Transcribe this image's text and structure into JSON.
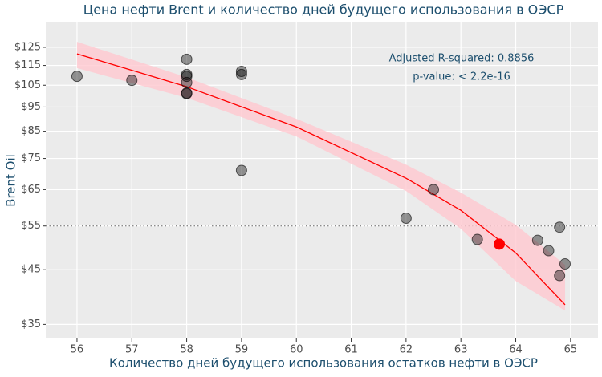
{
  "chart_data": {
    "type": "scatter",
    "title": "Цена нефти Brent и количество дней будущего использования в ОЭСР",
    "x_label": "Количество дней будущего использования остатков нефти в ОЭСР",
    "y_label": "Brent Oil",
    "annotations": [
      "Adjusted R-squared: 0.8856",
      "p-value: < 2.2e-16"
    ],
    "xlim": [
      55.43,
      65.5
    ],
    "ylim": [
      32.8,
      140.1
    ],
    "log_y": true,
    "grid": true,
    "xticks": [
      56,
      57,
      58,
      59,
      60,
      61,
      62,
      63,
      64,
      65
    ],
    "yticks": [
      {
        "value": 35,
        "label": "$35"
      },
      {
        "value": 45,
        "label": "$45"
      },
      {
        "value": 55,
        "label": "$55"
      },
      {
        "value": 65,
        "label": "$65"
      },
      {
        "value": 75,
        "label": "$75"
      },
      {
        "value": 85,
        "label": "$85"
      },
      {
        "value": 95,
        "label": "$95"
      },
      {
        "value": 105,
        "label": "$105"
      },
      {
        "value": 115,
        "label": "$115"
      },
      {
        "value": 125,
        "label": "$125"
      }
    ],
    "hline": 55,
    "series": [
      {
        "type": "scatter",
        "color": "#000000",
        "alpha": 0.4,
        "x": [
          56,
          57,
          58,
          58,
          58,
          58,
          58,
          58,
          59,
          59,
          59,
          62,
          62.5,
          63.3,
          64.4,
          64.6,
          64.8,
          64.8,
          64.9
        ],
        "values": [
          109.4,
          107.4,
          118.3,
          110.3,
          109.4,
          106.3,
          101.3,
          101,
          111.9,
          110.3,
          71.0,
          57.0,
          65.0,
          51.7,
          51.5,
          49.1,
          54.7,
          43.8,
          46.2
        ]
      },
      {
        "type": "scatter",
        "color": "#ff0000",
        "alpha": 1,
        "x": [
          63.7
        ],
        "values": [
          50.6
        ]
      },
      {
        "type": "line",
        "color": "#ff0000",
        "band_color": "#ffc8d0",
        "x": [
          56,
          58,
          60,
          62,
          63,
          64,
          64.9
        ],
        "values": [
          121.3,
          104.3,
          86.7,
          68.5,
          59.1,
          48.6,
          38.3
        ],
        "lower": [
          113.6,
          99.1,
          83.0,
          64.6,
          54.3,
          42.7,
          37.3
        ],
        "upper": [
          128.2,
          108.9,
          90.0,
          72.9,
          64.1,
          55.3,
          46.0
        ]
      }
    ]
  }
}
